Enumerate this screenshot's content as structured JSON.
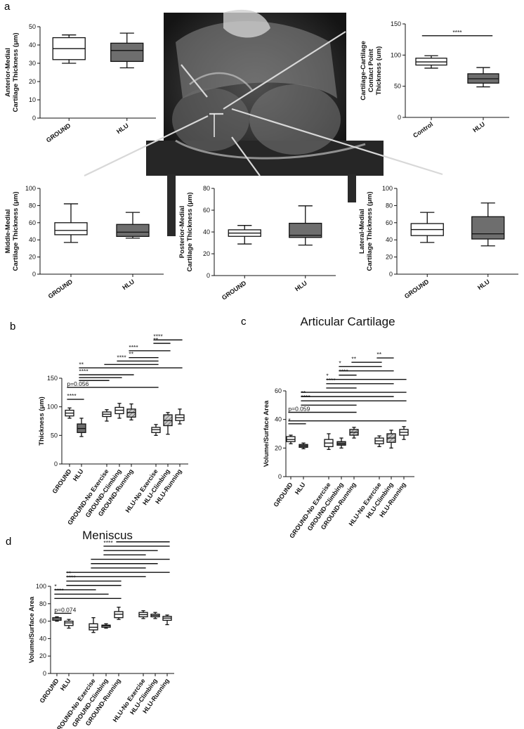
{
  "figure": {
    "panel_a_label": "a",
    "panel_b_label": "b",
    "panel_c_label": "c",
    "panel_d_label": "d"
  },
  "colors": {
    "white_box": "#ffffff",
    "gray_box": "#6e6e6e",
    "hatched_box": "#b8b8b8",
    "line": "#111111",
    "image_bg": "#1e1e1e"
  },
  "chart_data": [
    {
      "id": "a-anterior-medial",
      "type": "box",
      "title": "",
      "ylabel": [
        "Anterior-Medial",
        "Cartilage Thickness (μm)"
      ],
      "categories": [
        "GROUND",
        "HLU"
      ],
      "ylim": [
        0,
        50
      ],
      "yticks": [
        0,
        10,
        20,
        30,
        40,
        50
      ],
      "boxes": [
        {
          "min": 30,
          "q1": 32,
          "median": 38,
          "q3": 44,
          "max": 45.5,
          "fill": "white"
        },
        {
          "min": 27.5,
          "q1": 31,
          "median": 37,
          "q3": 41,
          "max": 46.5,
          "fill": "gray"
        }
      ],
      "significance": []
    },
    {
      "id": "a-contact-point",
      "type": "box",
      "title": "",
      "ylabel": [
        "Cartilage-Cartilage",
        "Contact Point",
        "Thickness (um)"
      ],
      "categories": [
        "Control",
        "HLU"
      ],
      "ylim": [
        0,
        150
      ],
      "yticks": [
        0,
        50,
        100,
        150
      ],
      "boxes": [
        {
          "min": 79,
          "q1": 84,
          "median": 89,
          "q3": 95,
          "max": 99,
          "fill": "white"
        },
        {
          "min": 49,
          "q1": 55,
          "median": 62,
          "q3": 70,
          "max": 80,
          "fill": "gray"
        }
      ],
      "significance": [
        {
          "from": 0,
          "to": 1,
          "y": 131,
          "label": "****"
        }
      ]
    },
    {
      "id": "a-middle-medial",
      "type": "box",
      "title": "",
      "ylabel": [
        "Middle-Medial",
        "Cartilage Thickness (μm)"
      ],
      "categories": [
        "GROUND",
        "HLU"
      ],
      "ylim": [
        0,
        100
      ],
      "yticks": [
        0,
        20,
        40,
        60,
        80,
        100
      ],
      "boxes": [
        {
          "min": 37,
          "q1": 46,
          "median": 51,
          "q3": 60,
          "max": 82,
          "fill": "white"
        },
        {
          "min": 42,
          "q1": 44,
          "median": 49,
          "q3": 58,
          "max": 72,
          "fill": "gray"
        }
      ],
      "significance": []
    },
    {
      "id": "a-posterior-medial",
      "type": "box",
      "title": "",
      "ylabel": [
        "Posterior-Medial",
        "Cartilage Thickness (μm)"
      ],
      "categories": [
        "GROUND",
        "HLU"
      ],
      "ylim": [
        0,
        80
      ],
      "yticks": [
        0,
        20,
        40,
        60,
        80
      ],
      "boxes": [
        {
          "min": 29,
          "q1": 36,
          "median": 39,
          "q3": 42,
          "max": 46,
          "fill": "white"
        },
        {
          "min": 28,
          "q1": 35,
          "median": 37,
          "q3": 48,
          "max": 64,
          "fill": "gray"
        }
      ],
      "significance": []
    },
    {
      "id": "a-lateral-medial",
      "type": "box",
      "title": "",
      "ylabel": [
        "Lateral-Medial",
        "Cartilage Thickness (μm)"
      ],
      "categories": [
        "GROUND",
        "HLU"
      ],
      "ylim": [
        0,
        100
      ],
      "yticks": [
        0,
        20,
        40,
        60,
        80,
        100
      ],
      "boxes": [
        {
          "min": 37,
          "q1": 45,
          "median": 52,
          "q3": 59,
          "max": 72,
          "fill": "white"
        },
        {
          "min": 33,
          "q1": 41,
          "median": 47,
          "q3": 67,
          "max": 83,
          "fill": "gray"
        }
      ],
      "significance": []
    },
    {
      "id": "b-thickness",
      "type": "box",
      "title": "",
      "ylabel": [
        "Thickness (μm)"
      ],
      "categories": [
        "GROUND",
        "HLU",
        "GROUND-No Exercise",
        "GROUND-Climbing",
        "GROUND-Running",
        "HLU-No Exercise",
        "HLU-Climbing",
        "HLU-Running"
      ],
      "ylim": [
        0,
        150
      ],
      "yticks": [
        0,
        50,
        100,
        150
      ],
      "boxes": [
        {
          "min": 80,
          "q1": 84,
          "median": 89,
          "q3": 94,
          "max": 98,
          "fill": "white"
        },
        {
          "min": 48,
          "q1": 55,
          "median": 62,
          "q3": 70,
          "max": 80,
          "fill": "gray"
        },
        {
          "min": 75,
          "q1": 83,
          "median": 87,
          "q3": 91,
          "max": 95,
          "fill": "white"
        },
        {
          "min": 80,
          "q1": 88,
          "median": 94,
          "q3": 99,
          "max": 106,
          "fill": "white"
        },
        {
          "min": 77,
          "q1": 82,
          "median": 90,
          "q3": 96,
          "max": 105,
          "fill": "hatched"
        },
        {
          "min": 50,
          "q1": 55,
          "median": 60,
          "q3": 64,
          "max": 69,
          "fill": "white"
        },
        {
          "min": 52,
          "q1": 67,
          "median": 76,
          "q3": 86,
          "max": 90,
          "fill": "hatched"
        },
        {
          "min": 70,
          "q1": 76,
          "median": 81,
          "q3": 86,
          "max": 96,
          "fill": "white"
        }
      ],
      "significance": [
        {
          "from": 0,
          "to": 1,
          "y": 113,
          "label": "****"
        },
        {
          "from": 0,
          "to": 5,
          "y": 134,
          "label": "p=0.056"
        },
        {
          "from": 1,
          "to": 2,
          "y": 146,
          "label": ""
        },
        {
          "from": 1,
          "to": 3,
          "y": 151,
          "label": ""
        },
        {
          "from": 1,
          "to": 4,
          "y": 156,
          "label": "****"
        },
        {
          "from": 1,
          "to": 7,
          "y": 168,
          "label": "**"
        },
        {
          "from": 2,
          "to": 5,
          "y": 174,
          "label": ""
        },
        {
          "from": 3,
          "to": 5,
          "y": 180,
          "label": "****"
        },
        {
          "from": 4,
          "to": 5,
          "y": 186,
          "label": "**"
        },
        {
          "from": 4,
          "to": 6,
          "y": 198,
          "label": "****"
        },
        {
          "from": 5,
          "to": 6,
          "y": 211,
          "label": "**"
        },
        {
          "from": 5,
          "to": 7,
          "y": 217,
          "label": "****"
        }
      ]
    },
    {
      "id": "c-articular",
      "type": "box",
      "title": "Articular Cartilage",
      "ylabel": [
        "Volume/Surface Area"
      ],
      "categories": [
        "GROUND",
        "HLU",
        "GROUND-No Exercise",
        "GROUND-Climbing",
        "GROUND-Running",
        "HLU-No Exercise",
        "HLU-Climbing",
        "HLU-Running"
      ],
      "ylim": [
        0,
        60
      ],
      "yticks": [
        0,
        20,
        40,
        60
      ],
      "boxes": [
        {
          "min": 23,
          "q1": 24.5,
          "median": 26,
          "q3": 28,
          "max": 29,
          "fill": "white"
        },
        {
          "min": 19.5,
          "q1": 20.5,
          "median": 21.5,
          "q3": 22.5,
          "max": 23.5,
          "fill": "gray"
        },
        {
          "min": 19,
          "q1": 21,
          "median": 23.5,
          "q3": 26,
          "max": 30,
          "fill": "white"
        },
        {
          "min": 20,
          "q1": 22,
          "median": 23,
          "q3": 24.5,
          "max": 27,
          "fill": "gray"
        },
        {
          "min": 27,
          "q1": 29,
          "median": 31,
          "q3": 33,
          "max": 34.5,
          "fill": "hatched"
        },
        {
          "min": 21,
          "q1": 23,
          "median": 25,
          "q3": 27,
          "max": 28.5,
          "fill": "white"
        },
        {
          "min": 20,
          "q1": 24,
          "median": 27,
          "q3": 30,
          "max": 32.5,
          "fill": "hatched"
        },
        {
          "min": 26,
          "q1": 29,
          "median": 31,
          "q3": 33,
          "max": 35,
          "fill": "white"
        }
      ],
      "significance": [
        {
          "from": 0,
          "to": 1,
          "y": 37,
          "label": "*"
        },
        {
          "from": 0,
          "to": 7,
          "y": 39,
          "label": ""
        },
        {
          "from": 0,
          "to": 4,
          "y": 45,
          "label": "p=0.059"
        },
        {
          "from": 1,
          "to": 4,
          "y": 50,
          "label": ""
        },
        {
          "from": 1,
          "to": 7,
          "y": 53,
          "label": "****"
        },
        {
          "from": 1,
          "to": 6,
          "y": 56,
          "label": "**"
        },
        {
          "from": 1,
          "to": 7,
          "y": 59,
          "label": ""
        },
        {
          "from": 2,
          "to": 4,
          "y": 62,
          "label": ""
        },
        {
          "from": 2,
          "to": 6,
          "y": 65,
          "label": "****"
        },
        {
          "from": 2,
          "to": 7,
          "y": 68,
          "label": "*"
        },
        {
          "from": 3,
          "to": 4,
          "y": 71,
          "label": "****"
        },
        {
          "from": 3,
          "to": 6,
          "y": 74,
          "label": ""
        },
        {
          "from": 3,
          "to": 5,
          "y": 77,
          "label": "*"
        },
        {
          "from": 4,
          "to": 5,
          "y": 80,
          "label": "**"
        },
        {
          "from": 5,
          "to": 6,
          "y": 83,
          "label": "**"
        }
      ]
    },
    {
      "id": "d-meniscus",
      "type": "box",
      "title": "Meniscus",
      "ylabel": [
        "Volume/Surface Area"
      ],
      "categories": [
        "GROUND",
        "HLU",
        "GROUND-No Exercise",
        "GROUND-Climbing",
        "GROUND-Running",
        "HLU-No Exercise",
        "HLU-Climbing",
        "HLU-Running"
      ],
      "ylim": [
        0,
        100
      ],
      "yticks": [
        0,
        20,
        40,
        60,
        80,
        100
      ],
      "boxes": [
        {
          "min": 60,
          "q1": 61,
          "median": 62.5,
          "q3": 64,
          "max": 65,
          "fill": "white"
        },
        {
          "min": 52,
          "q1": 55,
          "median": 58,
          "q3": 60,
          "max": 62,
          "fill": "white"
        },
        {
          "min": 47,
          "q1": 50,
          "median": 53,
          "q3": 57,
          "max": 64,
          "fill": "white"
        },
        {
          "min": 52,
          "q1": 53,
          "median": 54.5,
          "q3": 55.5,
          "max": 57,
          "fill": "white"
        },
        {
          "min": 62,
          "q1": 64,
          "median": 68,
          "q3": 71,
          "max": 76,
          "fill": "white"
        },
        {
          "min": 63,
          "q1": 65,
          "median": 67.5,
          "q3": 70,
          "max": 72,
          "fill": "white"
        },
        {
          "min": 63,
          "q1": 65,
          "median": 66.5,
          "q3": 68,
          "max": 70,
          "fill": "white"
        },
        {
          "min": 56,
          "q1": 61,
          "median": 63.5,
          "q3": 65.5,
          "max": 67,
          "fill": "white"
        }
      ],
      "significance": [
        {
          "from": 0,
          "to": 1,
          "y": 69,
          "label": "p=0.074"
        },
        {
          "from": 0,
          "to": 4,
          "y": 86,
          "label": ""
        },
        {
          "from": 0,
          "to": 3,
          "y": 91,
          "label": "****"
        },
        {
          "from": 0,
          "to": 2,
          "y": 96,
          "label": "*"
        },
        {
          "from": 1,
          "to": 4,
          "y": 101,
          "label": ""
        },
        {
          "from": 1,
          "to": 4,
          "y": 106,
          "label": "****"
        },
        {
          "from": 1,
          "to": 5,
          "y": 111,
          "label": "**"
        },
        {
          "from": 1,
          "to": 7,
          "y": 116,
          "label": ""
        },
        {
          "from": 2,
          "to": 5,
          "y": 121,
          "label": ""
        },
        {
          "from": 2,
          "to": 6,
          "y": 126,
          "label": ""
        },
        {
          "from": 2,
          "to": 7,
          "y": 131,
          "label": ""
        },
        {
          "from": 3,
          "to": 5,
          "y": 136,
          "label": ""
        },
        {
          "from": 3,
          "to": 6,
          "y": 141,
          "label": ""
        },
        {
          "from": 3,
          "to": 7,
          "y": 146,
          "label": "****"
        },
        {
          "from": 4,
          "to": 7,
          "y": 151,
          "label": ""
        }
      ]
    }
  ]
}
